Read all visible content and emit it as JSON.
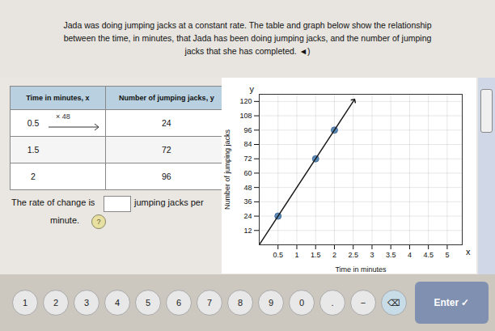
{
  "chart_data": [
    {
      "type": "table",
      "title": "Jada was doing jumping jacks at a constant rate. The table and graph below show the relationship\nbetween the time, in minutes, that Jada has been doing jumping jacks, and the number of jumping\njacks that she has completed.  ◄)",
      "columns": [
        "Time in minutes, x",
        "Number of jumping jacks, y"
      ],
      "rows": [
        [
          "0.5",
          "24"
        ],
        [
          "1.5",
          "72"
        ],
        [
          "2",
          "96"
        ]
      ],
      "annotations": [
        "× 48",
        "The rate of change is",
        "jumping jacks per",
        "minute.",
        "?"
      ],
      "buttons": [
        "1",
        "2",
        "3",
        "4",
        "5",
        "6",
        "7",
        "8",
        "9",
        "0",
        ".",
        "−",
        "⌫",
        "Enter ✓"
      ]
    },
    {
      "type": "scatter",
      "xlabel": "Time in minutes",
      "ylabel": "Number of jumping jacks",
      "xlim": [
        0,
        5.4
      ],
      "ylim": [
        0,
        126
      ],
      "xticks": [
        0.5,
        1,
        1.5,
        2,
        2.5,
        3,
        3.5,
        4,
        4.5,
        5
      ],
      "yticks": [
        12,
        24,
        36,
        48,
        60,
        72,
        84,
        96,
        108,
        120
      ],
      "grid": true,
      "annotations": [
        "y",
        "x"
      ],
      "series": [
        {
          "type": "scatter",
          "color": "#5b8db8",
          "marker": "circle",
          "x": [
            0.5,
            1.5,
            2.0
          ],
          "values": [
            24,
            72,
            96
          ]
        },
        {
          "type": "line",
          "color": "#1a1a1a",
          "marker": "arrow",
          "x": [
            0.0,
            2.52
          ],
          "values": [
            0.0,
            121
          ]
        }
      ]
    }
  ]
}
